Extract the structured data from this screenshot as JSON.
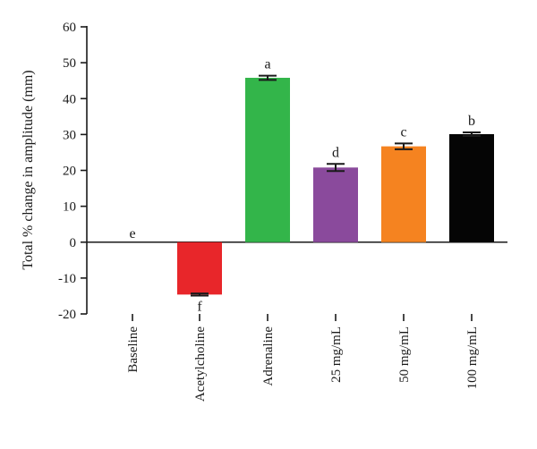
{
  "chart_data": {
    "type": "bar",
    "title": "",
    "xlabel": "",
    "ylabel": "Total % change in amplitude (mm)",
    "ylim": [
      -20,
      60
    ],
    "yticks": [
      -20,
      -10,
      0,
      10,
      20,
      30,
      40,
      50,
      60
    ],
    "grid": false,
    "legend": "none",
    "categories": [
      "Baseline",
      "Acetylcholine",
      "Adrenaline",
      "25 mg/mL",
      "50 mg/mL",
      "100 mg/mL"
    ],
    "values": [
      0,
      -14.6,
      45.8,
      20.8,
      26.7,
      30.1
    ],
    "errors": [
      0,
      0.3,
      0.6,
      1.0,
      0.8,
      0.5
    ],
    "significance_letters": [
      "e",
      "f",
      "a",
      "d",
      "c",
      "b"
    ],
    "colors": [
      "#ffffff",
      "#e8262a",
      "#33b54a",
      "#8a4a9c",
      "#f58320",
      "#050505"
    ]
  }
}
